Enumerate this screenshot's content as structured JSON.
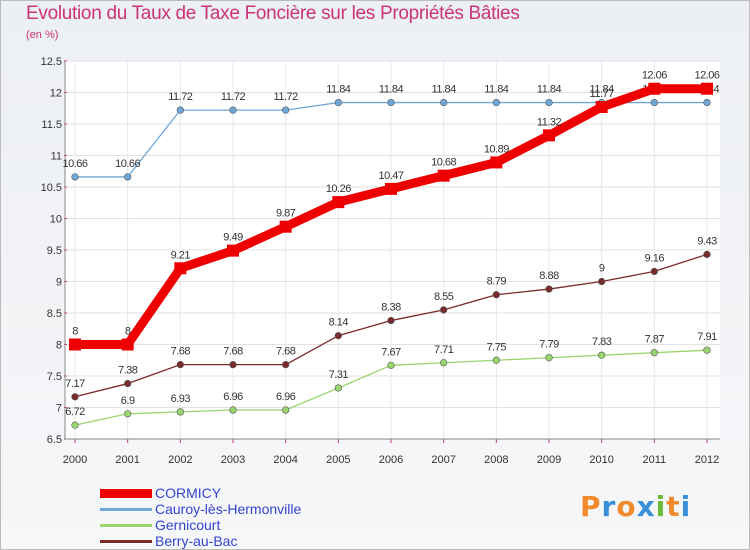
{
  "page": {
    "title": "Evolution du Taux de Taxe Foncière sur les Propriétés Bâties",
    "unit": "(en %)",
    "logo": {
      "text": "Proxiti",
      "letters": [
        "P",
        "r",
        "o",
        "x",
        "i",
        "t",
        "i"
      ],
      "colors": [
        "#f08a2a",
        "#3a8fd8",
        "#f08a2a",
        "#3a8fd8",
        "#6dbb3c",
        "#f08a2a",
        "#3a8fd8"
      ]
    }
  },
  "chart_data": {
    "type": "line",
    "title": "Evolution du Taux de Taxe Foncière sur les Propriétés Bâties",
    "ylabel": "(en %)",
    "xlabel": "",
    "x": [
      "2000",
      "2001",
      "2002",
      "2003",
      "2004",
      "2005",
      "2006",
      "2007",
      "2008",
      "2009",
      "2010",
      "2011",
      "2012"
    ],
    "ylim": [
      6.5,
      12.5
    ],
    "yticks": [
      "6.5",
      "7",
      "7.5",
      "8",
      "8.5",
      "9",
      "9.5",
      "10",
      "10.5",
      "11",
      "11.5",
      "12",
      "12.5"
    ],
    "series": [
      {
        "name": "CORMICY",
        "color": "#ee0000",
        "emphasis": true,
        "values": [
          8,
          8,
          9.21,
          9.49,
          9.87,
          10.26,
          10.47,
          10.68,
          10.89,
          11.32,
          11.77,
          12.06,
          12.06
        ],
        "labels": [
          "8",
          "8",
          "9.21",
          "9.49",
          "9.87",
          "10.26",
          "10.47",
          "10.68",
          "10.89",
          "11.32",
          "11.77",
          "12.06",
          "12.06"
        ]
      },
      {
        "name": "Cauroy-lès-Hermonville",
        "color": "#6fa8d8",
        "emphasis": false,
        "values": [
          10.66,
          10.66,
          11.72,
          11.72,
          11.72,
          11.84,
          11.84,
          11.84,
          11.84,
          11.84,
          11.84,
          11.84,
          11.84
        ],
        "labels": [
          "10.66",
          "10.66",
          "11.72",
          "11.72",
          "11.72",
          "11.84",
          "11.84",
          "11.84",
          "11.84",
          "11.84",
          "11.84",
          "11.84",
          "11.84"
        ]
      },
      {
        "name": "Gernicourt",
        "color": "#99d670",
        "emphasis": false,
        "values": [
          6.72,
          6.9,
          6.93,
          6.96,
          6.96,
          7.31,
          7.67,
          7.71,
          7.75,
          7.79,
          7.83,
          7.87,
          7.91
        ],
        "labels": [
          "6.72",
          "6.9",
          "6.93",
          "6.96",
          "6.96",
          "7.31",
          "7.67",
          "7.71",
          "7.75",
          "7.79",
          "7.83",
          "7.87",
          "7.91"
        ]
      },
      {
        "name": "Berry-au-Bac",
        "color": "#7a2b2b",
        "emphasis": false,
        "values": [
          7.17,
          7.38,
          7.68,
          7.68,
          7.68,
          8.14,
          8.38,
          8.55,
          8.79,
          8.88,
          9,
          9.16,
          9.43
        ],
        "labels": [
          "7.17",
          "7.38",
          "7.68",
          "7.68",
          "7.68",
          "8.14",
          "8.38",
          "8.55",
          "8.79",
          "8.88",
          "9",
          "9.16",
          "9.43"
        ]
      }
    ],
    "legend": {
      "position": "bottom-left"
    },
    "grid": true
  }
}
